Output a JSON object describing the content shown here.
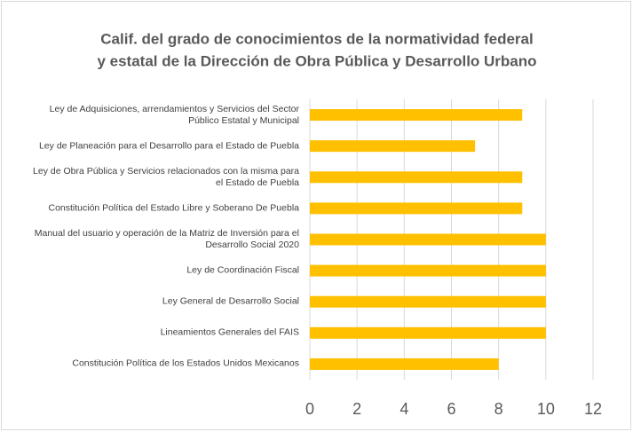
{
  "chart_data": {
    "type": "bar",
    "orientation": "horizontal",
    "title": [
      "Calif. del grado de conocimientos de la normatividad federal",
      "y estatal de la Dirección de Obra Pública y Desarrollo Urbano"
    ],
    "categories": [
      "Ley de Adquisiciones, arrendamientos y Servicios del Sector Público Estatal y Municipal",
      "Ley de Planeación para el Desarrollo para el Estado de Puebla",
      "Ley de Obra Pública y Servicios relacionados con la misma para el Estado de Puebla",
      "Constitución Política del Estado Libre y Soberano De Puebla",
      "Manual del usuario y operación de la Matriz de Inversión para el Desarrollo Social 2020",
      "Ley de Coordinación Fiscal",
      "Ley General de Desarrollo Social",
      "Lineamientos Generales del FAIS",
      "Constitución Política de los Estados Unidos Mexicanos"
    ],
    "values": [
      9,
      7,
      9,
      9,
      10,
      10,
      10,
      10,
      8
    ],
    "color": "#ffc000",
    "xlim": [
      0,
      12
    ],
    "xticks": [
      0,
      2,
      4,
      6,
      8,
      10,
      12
    ],
    "grid": true
  }
}
